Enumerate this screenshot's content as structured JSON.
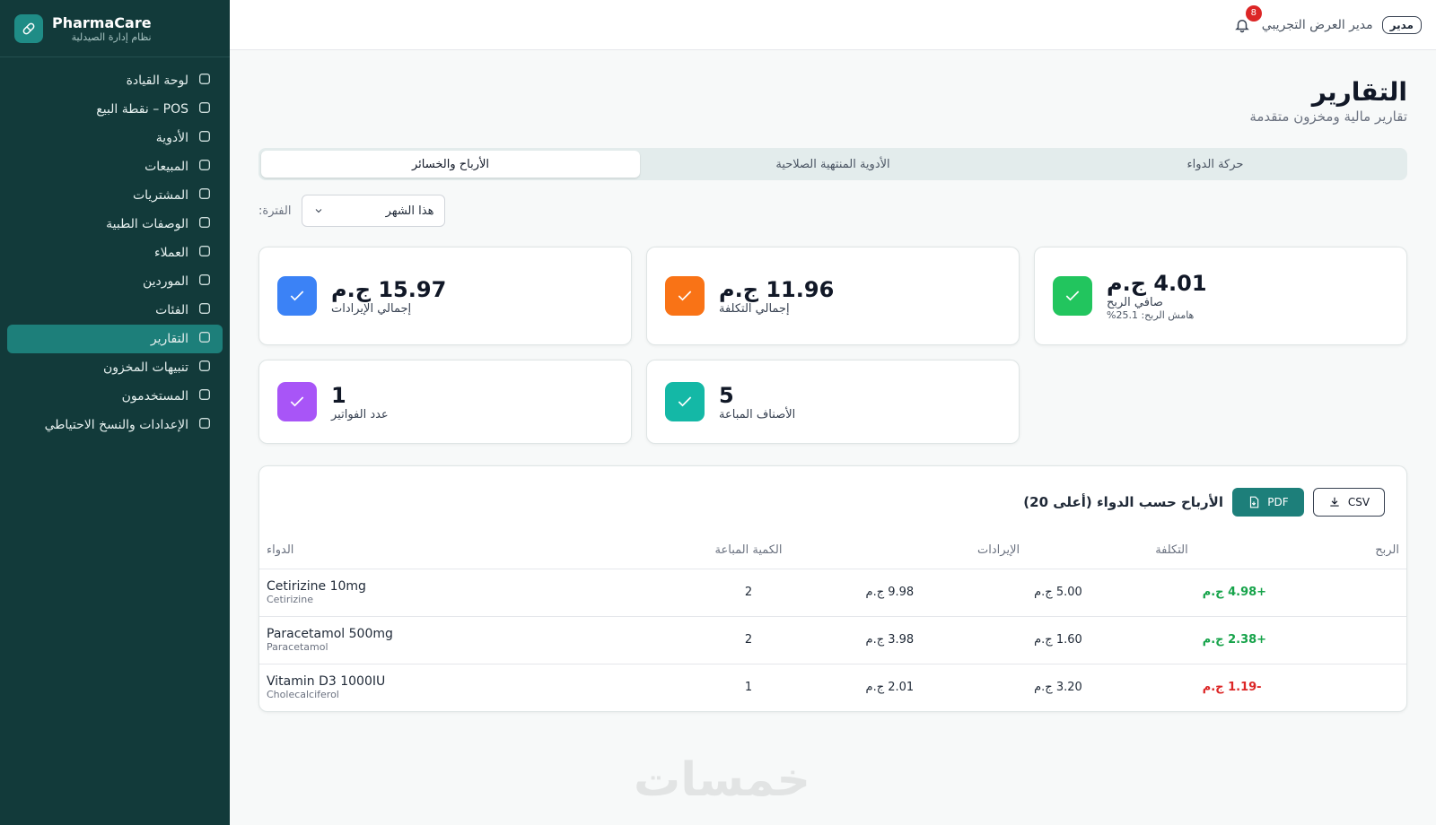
{
  "sidebar": {
    "brand": "PharmaCare",
    "tagline": "نظام إدارة الصيدلية",
    "active_index": 9,
    "menu": [
      "لوحة القيادة",
      "POS – نقطة البيع",
      "الأدوية",
      "المبيعات",
      "المشتريات",
      "الوصفات الطبية",
      "العملاء",
      "الموردين",
      "الفئات",
      "التقارير",
      "تنبيهات المخزون",
      "المستخدمون",
      "الإعدادات والنسخ الاحتياطي"
    ]
  },
  "header": {
    "notifications": 8,
    "user_name": "مدير العرض التجريبي",
    "role": "مدير"
  },
  "page": {
    "title": "التقارير",
    "subtitle": "تقارير مالية ومخزون متقدمة",
    "tabs": [
      "الأرباح والخسائر",
      "الأدوية المنتهية الصلاحية",
      "حركة الدواء"
    ],
    "active_tab": 0,
    "filter_label": "الفترة:",
    "filter_value": "هذا الشهر"
  },
  "stats": [
    {
      "value": "15.97 ج.م",
      "label": "إجمالي الإيرادات"
    },
    {
      "value": "11.96 ج.م",
      "label": "إجمالي التكلفة"
    },
    {
      "value": "4.01 ج.م",
      "label": "صافي الربح",
      "note": "هامش الربح: 25.1%"
    },
    {
      "value": 1,
      "label": "عدد الفواتير"
    },
    {
      "value": 5,
      "label": "الأصناف المباعة"
    }
  ],
  "table": {
    "title": "الأرباح حسب الدواء (أعلى 20)",
    "buttons": [
      "PDF",
      "CSV"
    ],
    "columns": [
      "الدواء",
      "الكمية المباعة",
      "الإيرادات",
      "التكلفة",
      "الربح"
    ],
    "rows": [
      {
        "name": "Cetirizine 10mg",
        "generic": "Cetirizine",
        "quantity": 2,
        "revenue": "9.98 ج.م",
        "cost": "5.00 ج.م",
        "profit": "+4.98 ج.م"
      },
      {
        "name": "Paracetamol 500mg",
        "generic": "Paracetamol",
        "quantity": 2,
        "revenue": "3.98 ج.م",
        "cost": "1.60 ج.م",
        "profit": "+2.38 ج.م"
      },
      {
        "name": "Vitamin D3 1000IU",
        "generic": "Cholecalciferol",
        "quantity": 1,
        "revenue": "2.01 ج.م",
        "cost": "3.20 ج.م",
        "profit": "-1.19 ج.م"
      }
    ]
  },
  "watermark": "خمسات"
}
